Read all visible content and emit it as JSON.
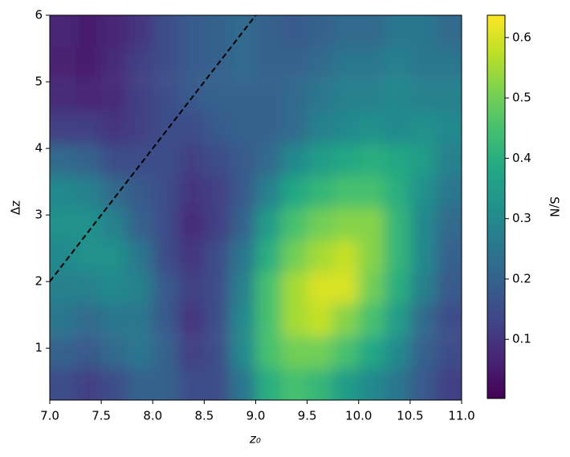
{
  "chart_data": {
    "type": "heatmap",
    "xlabel": "z₀",
    "ylabel": "Δz",
    "colorbar_label": "S/N",
    "colormap": "viridis",
    "x": [
      7.125,
      7.375,
      7.625,
      7.875,
      8.125,
      8.375,
      8.625,
      8.875,
      9.125,
      9.375,
      9.625,
      9.875,
      10.125,
      10.375,
      10.625,
      10.875
    ],
    "y": [
      0.46,
      0.94,
      1.43,
      1.91,
      2.39,
      2.87,
      3.35,
      3.83,
      4.31,
      4.79,
      5.28,
      5.76
    ],
    "z": [
      [
        0.15,
        0.12,
        0.15,
        0.2,
        0.2,
        0.15,
        0.15,
        0.25,
        0.4,
        0.45,
        0.42,
        0.35,
        0.3,
        0.25,
        0.18,
        0.12
      ],
      [
        0.2,
        0.18,
        0.22,
        0.25,
        0.2,
        0.12,
        0.15,
        0.3,
        0.45,
        0.5,
        0.5,
        0.45,
        0.38,
        0.3,
        0.2,
        0.15
      ],
      [
        0.25,
        0.22,
        0.25,
        0.25,
        0.18,
        0.1,
        0.15,
        0.3,
        0.45,
        0.55,
        0.58,
        0.52,
        0.45,
        0.35,
        0.22,
        0.15
      ],
      [
        0.28,
        0.28,
        0.3,
        0.28,
        0.18,
        0.12,
        0.15,
        0.28,
        0.45,
        0.55,
        0.6,
        0.6,
        0.5,
        0.4,
        0.28,
        0.18
      ],
      [
        0.3,
        0.32,
        0.32,
        0.25,
        0.15,
        0.1,
        0.15,
        0.25,
        0.4,
        0.5,
        0.55,
        0.58,
        0.52,
        0.42,
        0.3,
        0.2
      ],
      [
        0.32,
        0.32,
        0.28,
        0.2,
        0.15,
        0.08,
        0.12,
        0.2,
        0.35,
        0.45,
        0.5,
        0.52,
        0.52,
        0.42,
        0.3,
        0.22
      ],
      [
        0.3,
        0.28,
        0.22,
        0.18,
        0.15,
        0.1,
        0.12,
        0.18,
        0.28,
        0.38,
        0.42,
        0.45,
        0.45,
        0.4,
        0.32,
        0.25
      ],
      [
        0.22,
        0.2,
        0.15,
        0.15,
        0.15,
        0.12,
        0.15,
        0.18,
        0.22,
        0.3,
        0.35,
        0.38,
        0.4,
        0.38,
        0.35,
        0.28
      ],
      [
        0.12,
        0.12,
        0.1,
        0.12,
        0.15,
        0.15,
        0.18,
        0.2,
        0.2,
        0.22,
        0.28,
        0.3,
        0.32,
        0.3,
        0.32,
        0.3
      ],
      [
        0.08,
        0.07,
        0.08,
        0.12,
        0.15,
        0.18,
        0.2,
        0.2,
        0.2,
        0.22,
        0.25,
        0.28,
        0.28,
        0.3,
        0.28,
        0.28
      ],
      [
        0.06,
        0.05,
        0.08,
        0.12,
        0.15,
        0.18,
        0.2,
        0.22,
        0.2,
        0.2,
        0.22,
        0.25,
        0.25,
        0.28,
        0.25,
        0.25
      ],
      [
        0.07,
        0.05,
        0.07,
        0.1,
        0.15,
        0.18,
        0.2,
        0.22,
        0.2,
        0.18,
        0.2,
        0.22,
        0.22,
        0.25,
        0.25,
        0.22
      ]
    ],
    "xlim": [
      7,
      11
    ],
    "ylim": [
      0.22,
      6
    ],
    "clim": [
      0.002,
      0.637
    ],
    "xticks": [
      {
        "value": 7,
        "label": "7.0"
      },
      {
        "value": 7.5,
        "label": "7.5"
      },
      {
        "value": 8,
        "label": "8.0"
      },
      {
        "value": 8.5,
        "label": "8.5"
      },
      {
        "value": 9,
        "label": "9.0"
      },
      {
        "value": 9.5,
        "label": "9.5"
      },
      {
        "value": 10,
        "label": "10.0"
      },
      {
        "value": 10.5,
        "label": "10.5"
      },
      {
        "value": 11,
        "label": "11.0"
      }
    ],
    "yticks": [
      1,
      2,
      3,
      4,
      5,
      6
    ],
    "cticks": [
      0.1,
      0.2,
      0.3,
      0.4,
      0.5,
      0.6
    ],
    "line": {
      "x": [
        7,
        9
      ],
      "y": [
        2,
        6
      ],
      "color": "#000000",
      "style": "dashed"
    }
  }
}
